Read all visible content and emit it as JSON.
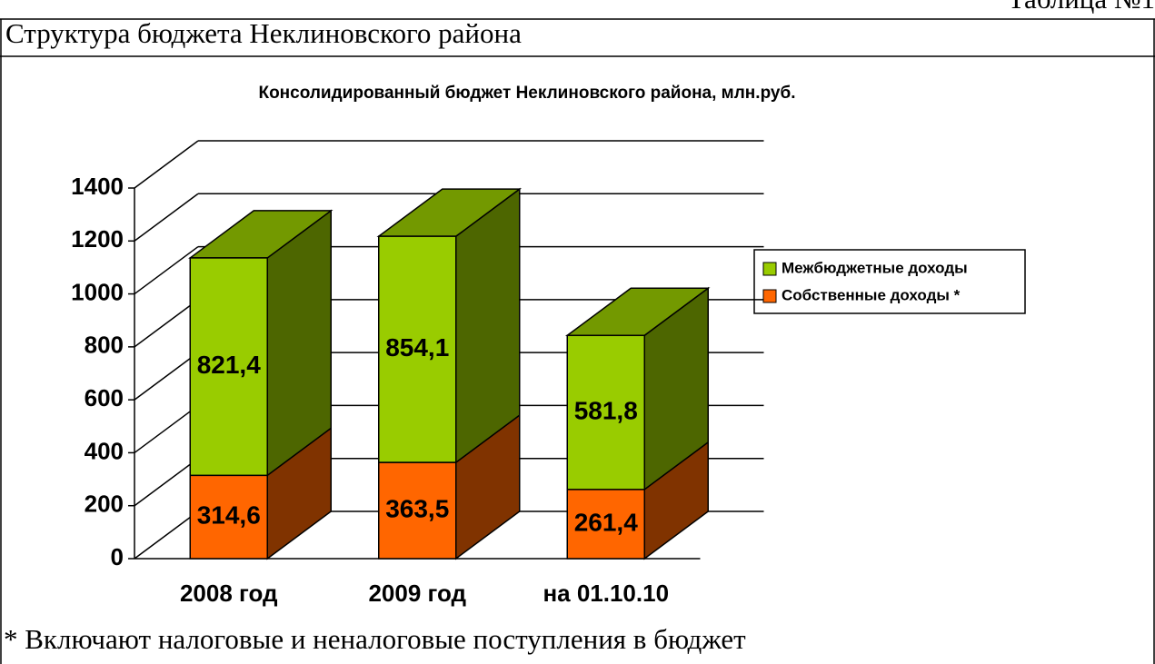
{
  "document": {
    "table_number": "Таблица №1",
    "heading": "Структура бюджета Неклиновского района",
    "footnote": "* Включают налоговые и неналоговые поступления в бюджет"
  },
  "chart_data": {
    "type": "bar3d_stacked",
    "title": "Консолидированный бюджет Неклиновского района, млн.руб.",
    "categories": [
      "2008 год",
      "2009 год",
      "на 01.10.10"
    ],
    "series": [
      {
        "name": "Собственные доходы *",
        "color": "#ff6600",
        "values": [
          314.6,
          363.5,
          261.4
        ],
        "value_labels": [
          "314,6",
          "363,5",
          "261,4"
        ]
      },
      {
        "name": "Межбюджетные доходы",
        "color": "#99cc00",
        "values": [
          821.4,
          854.1,
          581.8
        ],
        "value_labels": [
          "821,4",
          "854,1",
          "581,8"
        ]
      }
    ],
    "ylim": [
      0,
      1400
    ],
    "yticks": [
      0,
      200,
      400,
      600,
      800,
      1000,
      1200,
      1400
    ],
    "grid": true,
    "legend": "right"
  }
}
